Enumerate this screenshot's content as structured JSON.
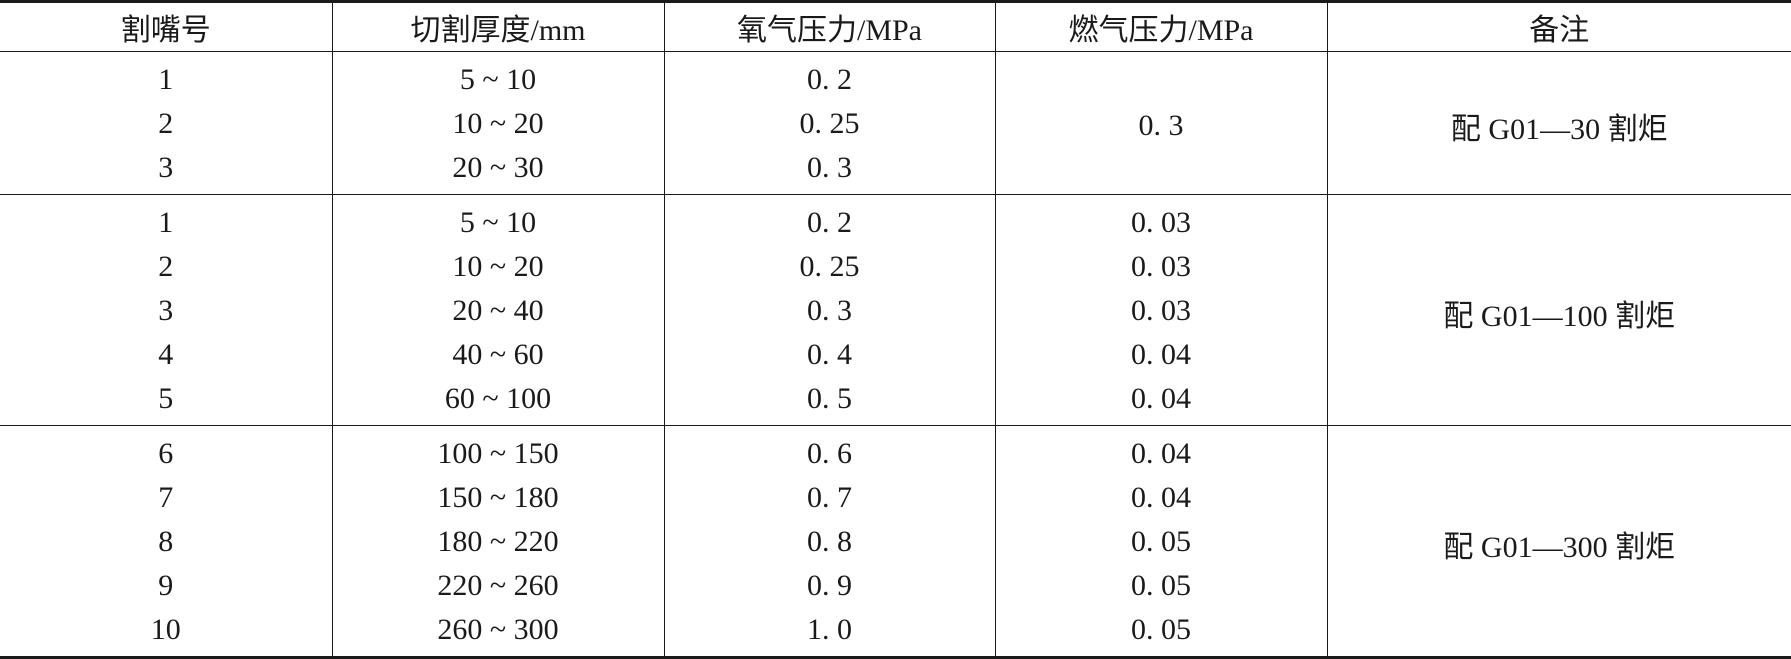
{
  "headers": [
    "割嘴号",
    "切割厚度/mm",
    "氧气压力/MPa",
    "燃气压力/MPa",
    "备注"
  ],
  "groups": [
    {
      "note": "配 G01—30 割炬",
      "gas_pressure_shared": "0. 3",
      "rows": [
        {
          "nozzle": "1",
          "thickness": "5 ~ 10",
          "oxygen": "0. 2"
        },
        {
          "nozzle": "2",
          "thickness": "10 ~ 20",
          "oxygen": "0. 25"
        },
        {
          "nozzle": "3",
          "thickness": "20 ~ 30",
          "oxygen": "0. 3"
        }
      ]
    },
    {
      "note": "配 G01—100 割炬",
      "rows": [
        {
          "nozzle": "1",
          "thickness": "5 ~ 10",
          "oxygen": "0. 2",
          "gas": "0. 03"
        },
        {
          "nozzle": "2",
          "thickness": "10 ~ 20",
          "oxygen": "0. 25",
          "gas": "0. 03"
        },
        {
          "nozzle": "3",
          "thickness": "20 ~ 40",
          "oxygen": "0. 3",
          "gas": "0. 03"
        },
        {
          "nozzle": "4",
          "thickness": "40 ~ 60",
          "oxygen": "0. 4",
          "gas": "0. 04"
        },
        {
          "nozzle": "5",
          "thickness": "60 ~ 100",
          "oxygen": "0. 5",
          "gas": "0. 04"
        }
      ]
    },
    {
      "note": "配 G01—300 割炬",
      "rows": [
        {
          "nozzle": "6",
          "thickness": "100 ~ 150",
          "oxygen": "0. 6",
          "gas": "0. 04"
        },
        {
          "nozzle": "7",
          "thickness": "150 ~ 180",
          "oxygen": "0. 7",
          "gas": "0. 04"
        },
        {
          "nozzle": "8",
          "thickness": "180 ~ 220",
          "oxygen": "0. 8",
          "gas": "0. 05"
        },
        {
          "nozzle": "9",
          "thickness": "220 ~ 260",
          "oxygen": "0. 9",
          "gas": "0. 05"
        },
        {
          "nozzle": "10",
          "thickness": "260 ~ 300",
          "oxygen": "1. 0",
          "gas": "0. 05"
        }
      ]
    }
  ]
}
